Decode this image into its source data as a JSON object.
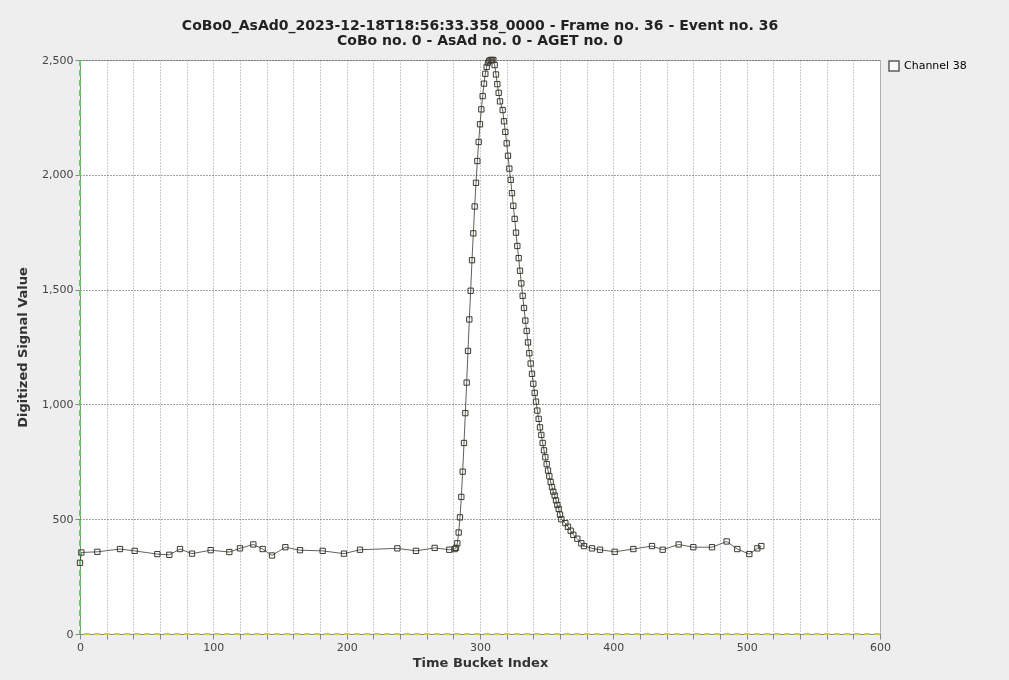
{
  "chart_data": {
    "type": "line",
    "title": "CoBo0_AsAd0_2023-12-18T18:56:33.358_0000 - Frame no. 36 - Event no. 36",
    "subtitle": "CoBo no. 0 - AsAd no. 0 - AGET no. 0",
    "xlabel": "Time Bucket Index",
    "ylabel": "Digitized Signal Value",
    "xlim": [
      0,
      600
    ],
    "ylim": [
      0,
      2500
    ],
    "xticks": [
      0,
      {
        "value": 20,
        "label": null
      },
      {
        "value": 40,
        "label": null
      },
      {
        "value": 60,
        "label": null
      },
      {
        "value": 80,
        "label": null
      },
      100,
      {
        "value": 120,
        "label": null
      },
      {
        "value": 140,
        "label": null
      },
      {
        "value": 160,
        "label": null
      },
      {
        "value": 180,
        "label": null
      },
      200,
      {
        "value": 220,
        "label": null
      },
      {
        "value": 240,
        "label": null
      },
      {
        "value": 260,
        "label": null
      },
      {
        "value": 280,
        "label": null
      },
      300,
      {
        "value": 320,
        "label": null
      },
      {
        "value": 340,
        "label": null
      },
      {
        "value": 360,
        "label": null
      },
      {
        "value": 380,
        "label": null
      },
      400,
      {
        "value": 420,
        "label": null
      },
      {
        "value": 440,
        "label": null
      },
      {
        "value": 460,
        "label": null
      },
      {
        "value": 480,
        "label": null
      },
      500,
      {
        "value": 520,
        "label": null
      },
      {
        "value": 540,
        "label": null
      },
      {
        "value": 560,
        "label": null
      },
      {
        "value": 580,
        "label": null
      },
      600
    ],
    "yticks": [
      0,
      500,
      {
        "value": 1000,
        "label": "1,000"
      },
      {
        "value": 1500,
        "label": "1,500"
      },
      {
        "value": 2000,
        "label": "2,000"
      },
      {
        "value": 2500,
        "label": "2,500"
      }
    ],
    "grid": true,
    "legend": "top right",
    "marker": "square",
    "line_style": "solid",
    "ref_lines": [
      {
        "axis": "x",
        "value": 0,
        "color": "#66cc66",
        "line_style": "dashed"
      },
      {
        "axis": "y",
        "value": 0,
        "color": "#cccc44",
        "line_style": "dashed"
      }
    ],
    "series": [
      {
        "name": "Channel 38",
        "color": "#3b3a30",
        "x": [
          0,
          1,
          13,
          30,
          41,
          58,
          67,
          75,
          84,
          98,
          112,
          120,
          130,
          137,
          144,
          154,
          165,
          182,
          198,
          210,
          238,
          252,
          266,
          277,
          281,
          282,
          283,
          284,
          285,
          286,
          287,
          288,
          289,
          290,
          291,
          292,
          293,
          294,
          295,
          296,
          297,
          298,
          299,
          300,
          301,
          302,
          303,
          304,
          305,
          306,
          307,
          308,
          309,
          310,
          311,
          312,
          313,
          314,
          315,
          317,
          318,
          319,
          320,
          321,
          322,
          323,
          324,
          325,
          326,
          327,
          328,
          329,
          330,
          331,
          332,
          333,
          334,
          335,
          336,
          337,
          338,
          339,
          340,
          341,
          342,
          343,
          344,
          345,
          346,
          347,
          348,
          349,
          350,
          351,
          352,
          353,
          354,
          355,
          356,
          357,
          358,
          359,
          360,
          361,
          364,
          366,
          368,
          370,
          373,
          376,
          378,
          384,
          390,
          401,
          415,
          429,
          437,
          449,
          460,
          474,
          485,
          493,
          502,
          508,
          511
        ],
        "values": [
          310,
          355,
          358,
          370,
          362,
          348,
          345,
          370,
          350,
          365,
          357,
          373,
          390,
          370,
          342,
          378,
          365,
          362,
          350,
          367,
          373,
          362,
          375,
          367,
          370,
          375,
          395,
          442,
          508,
          597,
          707,
          832,
          962,
          1095,
          1233,
          1370,
          1495,
          1628,
          1745,
          1862,
          1965,
          2060,
          2143,
          2220,
          2285,
          2343,
          2397,
          2440,
          2470,
          2488,
          2497,
          2500,
          2500,
          2500,
          2478,
          2437,
          2395,
          2357,
          2320,
          2282,
          2233,
          2187,
          2137,
          2083,
          2027,
          1978,
          1920,
          1865,
          1808,
          1748,
          1690,
          1637,
          1582,
          1527,
          1473,
          1420,
          1365,
          1320,
          1270,
          1223,
          1178,
          1133,
          1090,
          1050,
          1012,
          973,
          937,
          900,
          867,
          832,
          800,
          770,
          740,
          712,
          687,
          662,
          640,
          620,
          603,
          582,
          562,
          545,
          520,
          500,
          483,
          467,
          450,
          432,
          415,
          395,
          383,
          373,
          367,
          358,
          370,
          383,
          367,
          390,
          378,
          378,
          403,
          370,
          348,
          373,
          383
        ]
      }
    ]
  }
}
